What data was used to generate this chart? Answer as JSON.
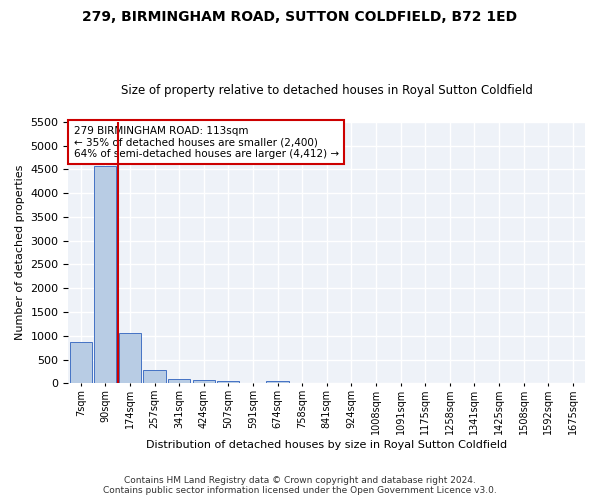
{
  "title_line1": "279, BIRMINGHAM ROAD, SUTTON COLDFIELD, B72 1ED",
  "title_line2": "Size of property relative to detached houses in Royal Sutton Coldfield",
  "xlabel": "Distribution of detached houses by size in Royal Sutton Coldfield",
  "ylabel": "Number of detached properties",
  "footer_line1": "Contains HM Land Registry data © Crown copyright and database right 2024.",
  "footer_line2": "Contains public sector information licensed under the Open Government Licence v3.0.",
  "bin_labels": [
    "7sqm",
    "90sqm",
    "174sqm",
    "257sqm",
    "341sqm",
    "424sqm",
    "507sqm",
    "591sqm",
    "674sqm",
    "758sqm",
    "841sqm",
    "924sqm",
    "1008sqm",
    "1091sqm",
    "1175sqm",
    "1258sqm",
    "1341sqm",
    "1425sqm",
    "1508sqm",
    "1592sqm",
    "1675sqm"
  ],
  "bar_values": [
    880,
    4560,
    1060,
    290,
    85,
    70,
    50,
    0,
    50,
    0,
    0,
    0,
    0,
    0,
    0,
    0,
    0,
    0,
    0,
    0,
    0
  ],
  "bar_color": "#b8cce4",
  "bar_edge_color": "#4472c4",
  "bg_color": "#eef2f8",
  "grid_color": "#ffffff",
  "property_line_color": "#cc0000",
  "annotation_text": "279 BIRMINGHAM ROAD: 113sqm\n← 35% of detached houses are smaller (2,400)\n64% of semi-detached houses are larger (4,412) →",
  "annotation_box_color": "#cc0000",
  "ylim": [
    0,
    5500
  ],
  "yticks": [
    0,
    500,
    1000,
    1500,
    2000,
    2500,
    3000,
    3500,
    4000,
    4500,
    5000,
    5500
  ]
}
